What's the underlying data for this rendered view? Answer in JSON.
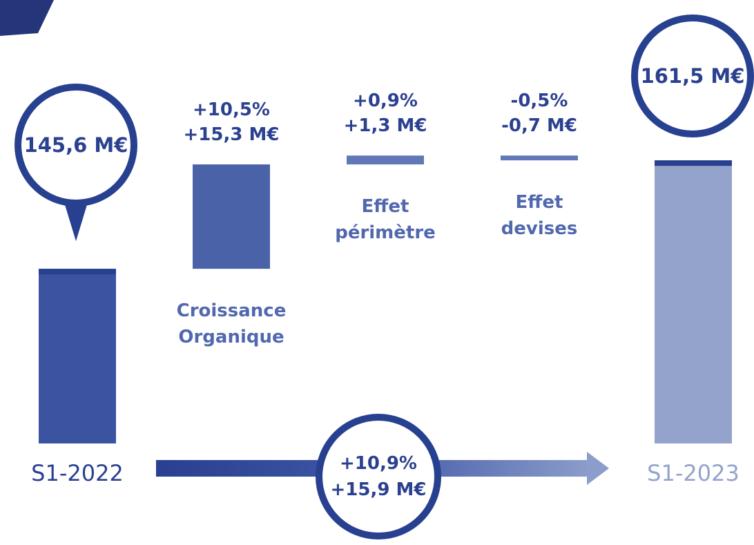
{
  "chart_data": {
    "type": "waterfall",
    "categories": [
      "S1-2022",
      "Croissance Organique",
      "Effet périmètre",
      "Effet devises",
      "S1-2023"
    ],
    "values": [
      145.6,
      15.3,
      1.3,
      -0.7,
      161.5
    ],
    "value_labels": [
      "145,6 M€",
      "+15,3 M€",
      "+1,3 M€",
      "-0,7 M€",
      "161,5 M€"
    ],
    "percent_labels": [
      null,
      "+10,5%",
      "+0,9%",
      "-0,5%",
      null
    ],
    "total_indices": [
      0,
      4
    ],
    "colors": [
      "#3b53a0",
      "#4a63a8",
      "#6079b6",
      "#6079b6",
      "#94a3cc"
    ],
    "ylim": [
      120,
      185
    ],
    "growth": {
      "percent": "+10,9%",
      "amount": "+15,9 M€"
    }
  }
}
